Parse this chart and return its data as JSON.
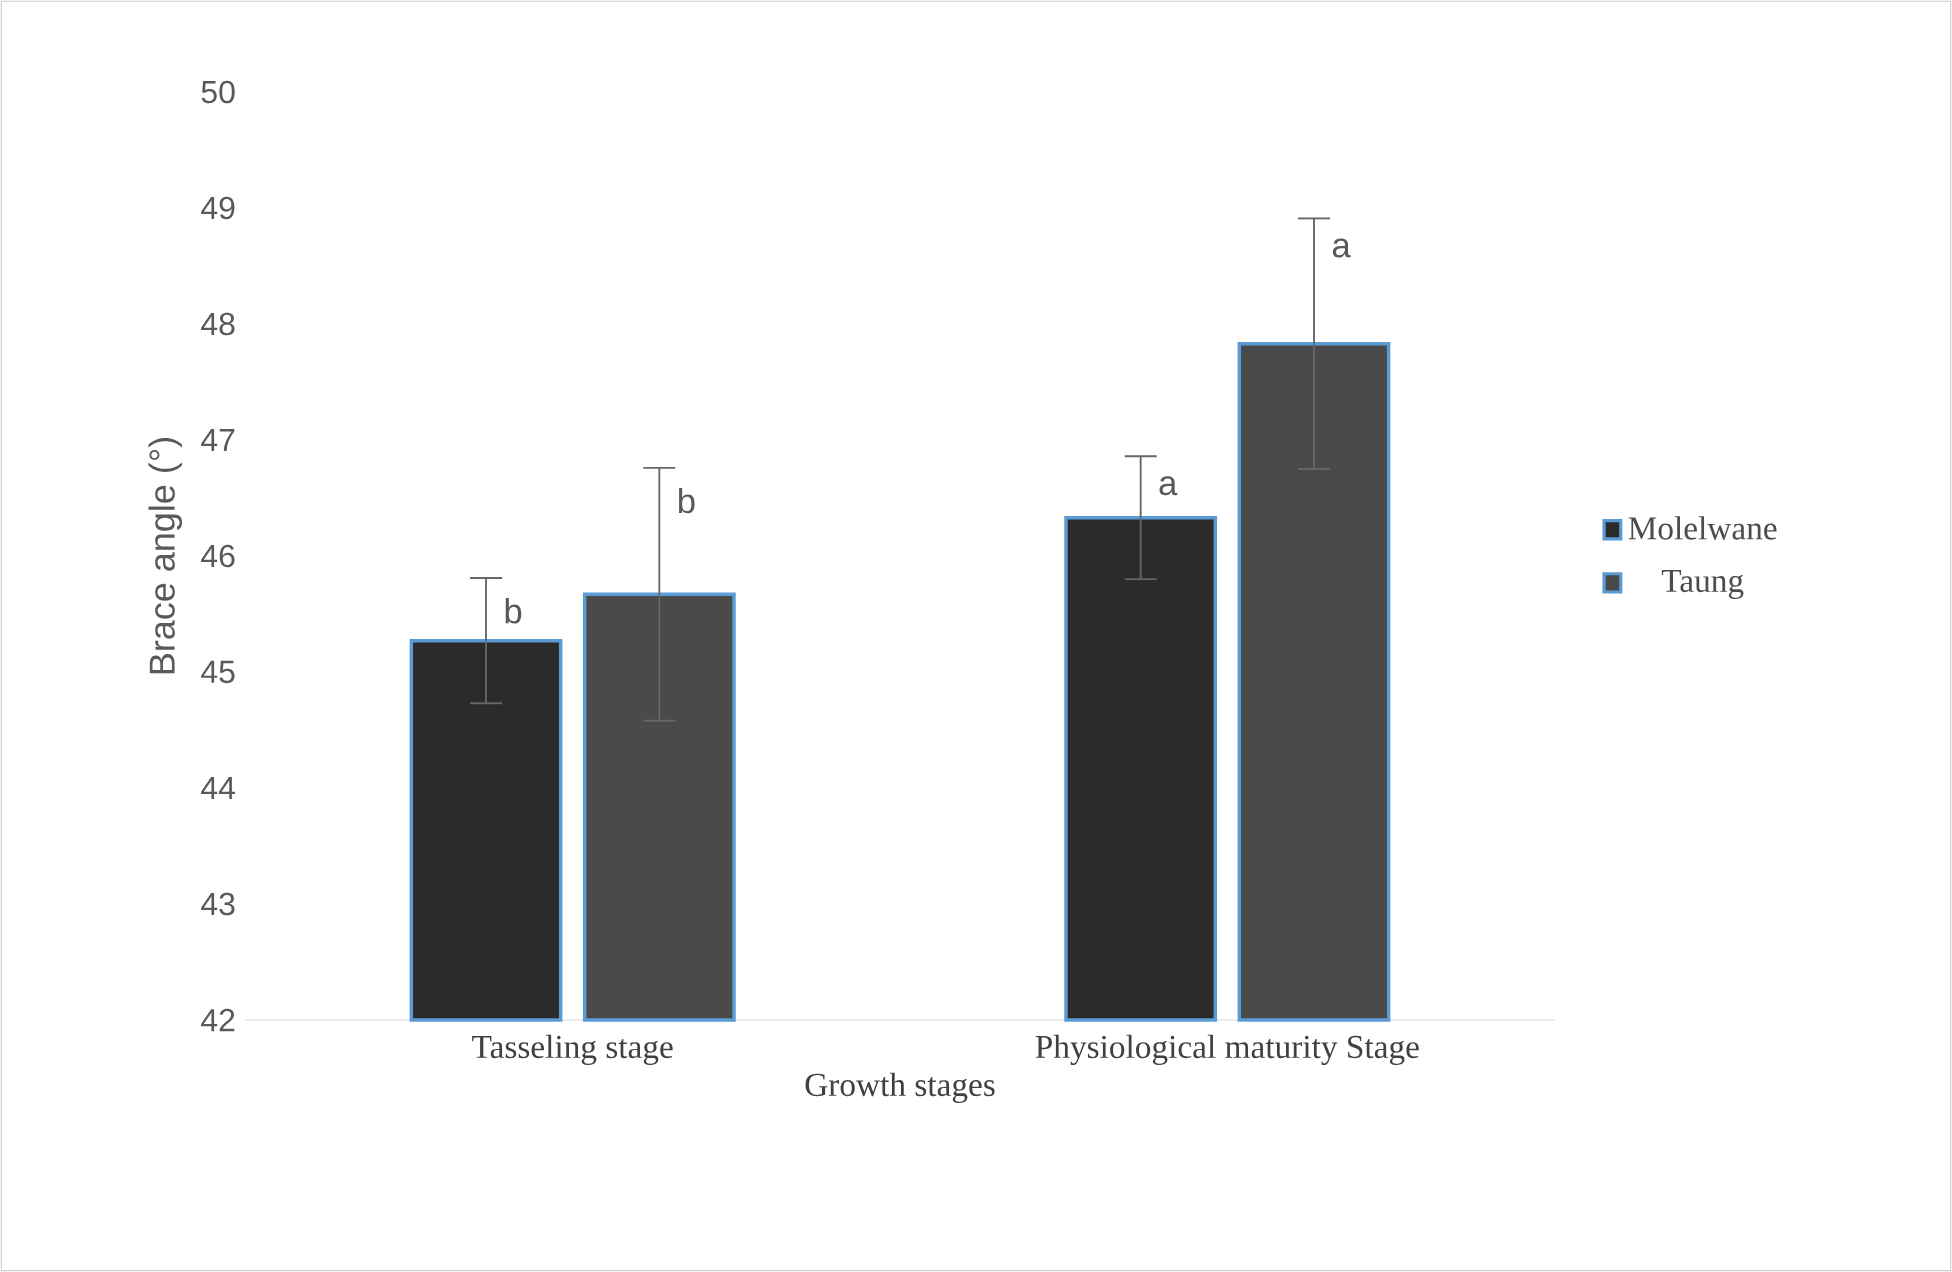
{
  "chart_data": {
    "type": "bar",
    "xlabel": "Growth stages",
    "ylabel": "Brace angle (°)",
    "categories": [
      "Tasseling stage",
      "Physiological  maturity Stage"
    ],
    "series": [
      {
        "name": "Molelwane",
        "color": "#2b2b2b",
        "values": [
          45.27,
          46.33
        ],
        "errors": [
          0.54,
          0.53
        ]
      },
      {
        "name": "Taung",
        "color": "#4a4a4a",
        "values": [
          45.67,
          47.83
        ],
        "errors": [
          1.09,
          1.08
        ]
      }
    ],
    "ylim": [
      42,
      50
    ],
    "yticks": [
      42,
      43,
      44,
      45,
      46,
      47,
      48,
      49,
      50
    ],
    "legend": "right",
    "annotations": [
      "b",
      "b",
      "a",
      "a"
    ]
  }
}
